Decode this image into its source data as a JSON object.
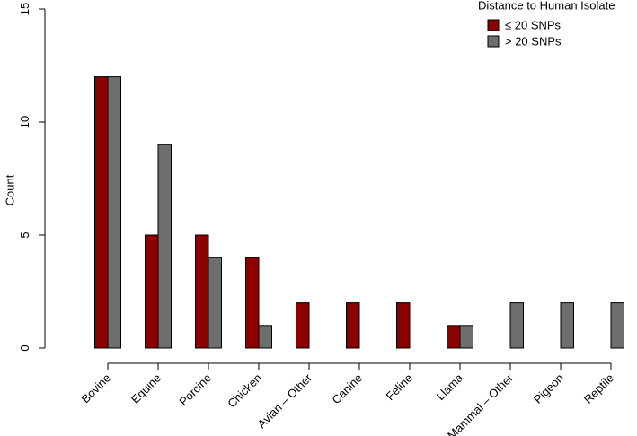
{
  "chart_data": {
    "type": "bar",
    "y_label": "Count",
    "legend_title": "Distance to Human Isolate",
    "categories": [
      "Bovine",
      "Equine",
      "Porcine",
      "Chicken",
      "Avian – Other",
      "Canine",
      "Feline",
      "Llama",
      "Mammal – Other",
      "Pigeon",
      "Reptile"
    ],
    "series": [
      {
        "name": "≤ 20 SNPs",
        "color": "#8b0000",
        "values": [
          12,
          5,
          5,
          4,
          2,
          2,
          2,
          1,
          0,
          0,
          0
        ]
      },
      {
        "name": "> 20 SNPs",
        "color": "#6e6e6e",
        "values": [
          12,
          9,
          4,
          1,
          0,
          0,
          0,
          1,
          2,
          2,
          2
        ]
      }
    ],
    "ylim": [
      0,
      15
    ],
    "yticks": [
      0,
      5,
      10,
      15
    ],
    "grid": false,
    "legend": "top-right"
  }
}
